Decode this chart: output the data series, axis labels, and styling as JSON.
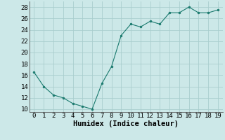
{
  "x": [
    0,
    1,
    2,
    3,
    4,
    5,
    6,
    7,
    8,
    9,
    10,
    11,
    12,
    13,
    14,
    15,
    16,
    17,
    18,
    19
  ],
  "y": [
    16.5,
    14.0,
    12.5,
    12.0,
    11.0,
    10.5,
    10.0,
    14.5,
    17.5,
    23.0,
    25.0,
    24.5,
    25.5,
    25.0,
    27.0,
    27.0,
    28.0,
    27.0,
    27.0,
    27.5
  ],
  "xlabel": "Humidex (Indice chaleur)",
  "ylim": [
    9.5,
    29
  ],
  "xlim": [
    -0.5,
    19.5
  ],
  "yticks": [
    10,
    12,
    14,
    16,
    18,
    20,
    22,
    24,
    26,
    28
  ],
  "xticks": [
    0,
    1,
    2,
    3,
    4,
    5,
    6,
    7,
    8,
    9,
    10,
    11,
    12,
    13,
    14,
    15,
    16,
    17,
    18,
    19
  ],
  "line_color": "#1a7a6e",
  "marker_color": "#1a7a6e",
  "bg_color": "#cce8e8",
  "grid_color": "#aacece",
  "label_fontsize": 7.5,
  "tick_fontsize": 6.5
}
